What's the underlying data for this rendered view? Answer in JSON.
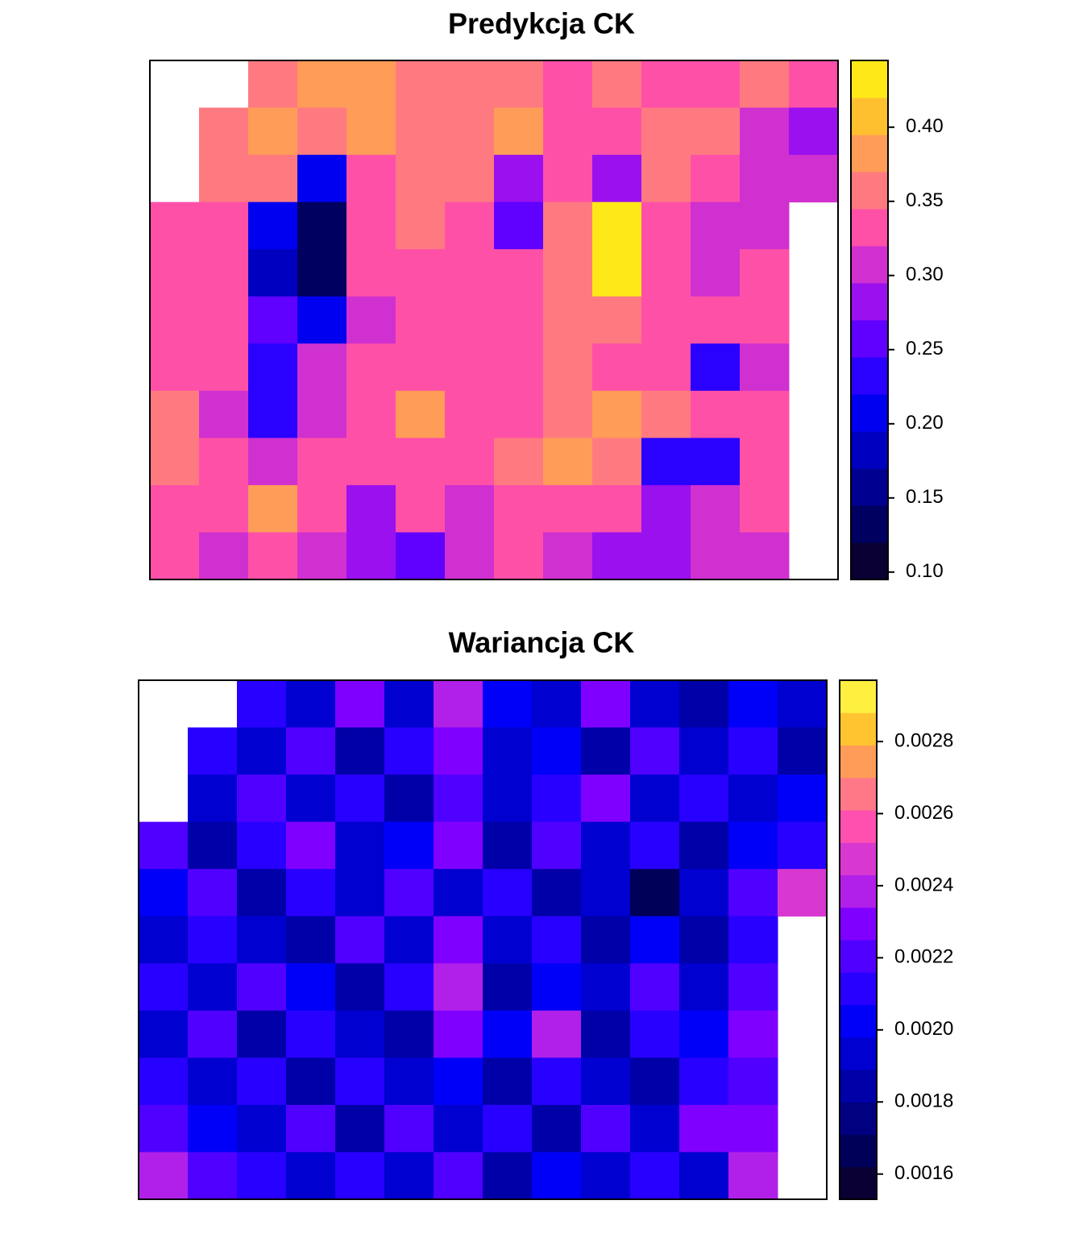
{
  "chart_data": [
    {
      "type": "raster",
      "title": "Predykcja CK",
      "breaks": [
        0.095,
        0.12,
        0.145,
        0.17,
        0.195,
        0.22,
        0.245,
        0.27,
        0.295,
        0.32,
        0.345,
        0.37,
        0.395,
        0.42,
        0.445
      ],
      "colors": [
        "#0a0033",
        "#000060",
        "#000090",
        "#0000c0",
        "#0000f0",
        "#2a00ff",
        "#6000ff",
        "#9a10ef",
        "#d030d0",
        "#ff50a8",
        "#ff7a80",
        "#ff9c58",
        "#ffc030",
        "#ffe818"
      ],
      "ticks": [
        {
          "value": 0.1,
          "label": "0.10"
        },
        0.15,
        {
          "value": 0.2,
          "label": "0.20"
        },
        0.25,
        {
          "value": 0.3,
          "label": "0.30"
        },
        0.35,
        {
          "value": 0.4,
          "label": "0.40"
        }
      ],
      "z": [
        [
          null,
          null,
          0.36,
          0.38,
          0.38,
          0.36,
          0.35,
          0.36,
          0.34,
          0.36,
          0.33,
          0.34,
          0.36,
          0.33
        ],
        [
          null,
          0.35,
          0.37,
          0.36,
          0.38,
          0.36,
          0.35,
          0.37,
          0.34,
          0.32,
          0.36,
          0.35,
          0.31,
          0.28
        ],
        [
          null,
          0.35,
          0.36,
          0.2,
          0.34,
          0.36,
          0.36,
          0.28,
          0.34,
          0.28,
          0.36,
          0.33,
          0.3,
          0.3
        ],
        [
          0.32,
          0.34,
          0.2,
          0.12,
          0.34,
          0.35,
          0.33,
          0.26,
          0.36,
          0.42,
          0.32,
          0.3,
          0.31,
          null
        ],
        [
          0.33,
          0.32,
          0.18,
          0.13,
          0.33,
          0.32,
          0.34,
          0.32,
          0.36,
          0.42,
          0.33,
          0.31,
          0.32,
          null
        ],
        [
          0.34,
          0.33,
          0.26,
          0.2,
          0.31,
          0.32,
          0.33,
          0.34,
          0.35,
          0.36,
          0.33,
          0.34,
          0.33,
          null
        ],
        [
          0.34,
          0.32,
          0.22,
          0.3,
          0.32,
          0.33,
          0.32,
          0.33,
          0.35,
          0.33,
          0.32,
          0.22,
          0.31,
          null
        ],
        [
          0.36,
          0.3,
          0.24,
          0.31,
          0.34,
          0.37,
          0.33,
          0.34,
          0.36,
          0.37,
          0.35,
          0.34,
          0.34,
          null
        ],
        [
          0.35,
          0.33,
          0.31,
          0.32,
          0.33,
          0.34,
          0.33,
          0.35,
          0.38,
          0.36,
          0.24,
          0.22,
          0.33,
          null
        ],
        [
          0.34,
          0.33,
          0.39,
          0.32,
          0.28,
          0.32,
          0.31,
          0.34,
          0.33,
          0.33,
          0.27,
          0.3,
          0.34,
          null
        ],
        [
          0.32,
          0.31,
          0.33,
          0.3,
          0.27,
          0.26,
          0.31,
          0.32,
          0.31,
          0.28,
          0.29,
          0.3,
          0.31,
          null
        ]
      ]
    },
    {
      "type": "raster",
      "title": "Wariancja CK",
      "breaks": [
        0.00153,
        0.00162,
        0.00171,
        0.0018,
        0.00189,
        0.00198,
        0.00207,
        0.00216,
        0.00225,
        0.00234,
        0.00243,
        0.00252,
        0.00261,
        0.0027,
        0.00279,
        0.00288,
        0.00297
      ],
      "colors": [
        "#0a0033",
        "#000058",
        "#000080",
        "#0000a8",
        "#0000d0",
        "#0000f8",
        "#2800ff",
        "#5000ff",
        "#8000ff",
        "#b020e8",
        "#d838d0",
        "#ff50b0",
        "#ff7888",
        "#ff9c58",
        "#ffc430",
        "#fff040"
      ],
      "ticks": [
        0.0016,
        0.0018,
        {
          "value": 0.002,
          "label": "0.0020"
        },
        0.0022,
        0.0024,
        0.0026,
        0.0028
      ],
      "z": [
        [
          null,
          null,
          0.0021,
          0.0019,
          0.0023,
          0.0019,
          0.0024,
          0.002,
          0.0019,
          0.0023,
          0.0019,
          0.0018,
          0.002,
          0.0019
        ],
        [
          null,
          0.0021,
          0.0019,
          0.0022,
          0.0018,
          0.0021,
          0.0023,
          0.0019,
          0.002,
          0.0018,
          0.0022,
          0.0019,
          0.0021,
          0.0018
        ],
        [
          null,
          0.0019,
          0.0022,
          0.0019,
          0.0021,
          0.0018,
          0.0022,
          0.0019,
          0.0021,
          0.0023,
          0.0019,
          0.0021,
          0.0019,
          0.002
        ],
        [
          0.0022,
          0.0018,
          0.0021,
          0.0023,
          0.0019,
          0.002,
          0.0023,
          0.0018,
          0.0022,
          0.0019,
          0.0021,
          0.0018,
          0.002,
          0.0021
        ],
        [
          0.002,
          0.0022,
          0.0018,
          0.0021,
          0.0019,
          0.0022,
          0.0019,
          0.0021,
          0.0018,
          0.0019,
          0.0017,
          0.0019,
          0.0022,
          0.0025
        ],
        [
          0.0019,
          0.0021,
          0.0019,
          0.0018,
          0.0022,
          0.0019,
          0.0023,
          0.0019,
          0.0021,
          0.0018,
          0.002,
          0.0018,
          0.0021,
          null
        ],
        [
          0.0021,
          0.0019,
          0.0022,
          0.002,
          0.0018,
          0.0021,
          0.0024,
          0.0018,
          0.002,
          0.0019,
          0.0022,
          0.0019,
          0.0022,
          null
        ],
        [
          0.0019,
          0.0022,
          0.0018,
          0.0021,
          0.0019,
          0.0018,
          0.0023,
          0.002,
          0.0024,
          0.0018,
          0.0021,
          0.002,
          0.0023,
          null
        ],
        [
          0.0021,
          0.0019,
          0.0021,
          0.0018,
          0.0021,
          0.0019,
          0.002,
          0.0018,
          0.0021,
          0.0019,
          0.0018,
          0.0021,
          0.0022,
          null
        ],
        [
          0.0022,
          0.002,
          0.0019,
          0.0022,
          0.0018,
          0.0022,
          0.0019,
          0.0021,
          0.0018,
          0.0022,
          0.0019,
          0.0023,
          0.0023,
          null
        ],
        [
          0.0024,
          0.0022,
          0.0021,
          0.0019,
          0.0021,
          0.0019,
          0.0022,
          0.0018,
          0.002,
          0.0019,
          0.0021,
          0.0019,
          0.0024,
          null
        ]
      ]
    }
  ]
}
